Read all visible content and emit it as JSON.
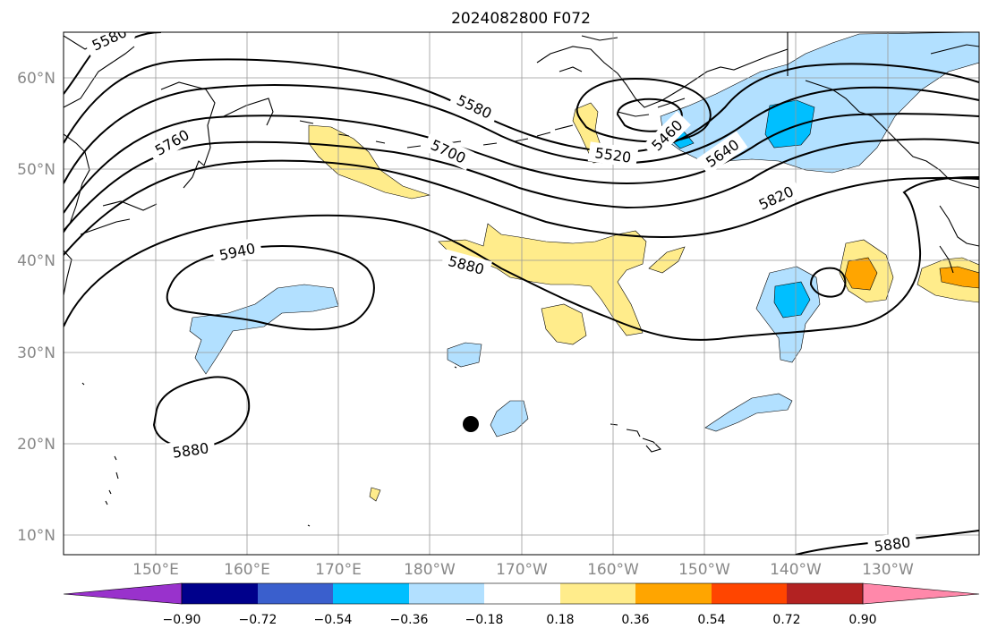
{
  "title": "2024082800 F072",
  "lat_ticks": [
    "60°N",
    "50°N",
    "40°N",
    "30°N",
    "20°N",
    "10°N"
  ],
  "lon_ticks": [
    "150°E",
    "160°E",
    "170°E",
    "180°W",
    "170°W",
    "160°W",
    "150°W",
    "140°W",
    "130°W"
  ],
  "contour_labels": {
    "c5580_nw": "5580",
    "c5760": "5760",
    "c5580": "5580",
    "c5700": "5700",
    "c5520": "5520",
    "c5460": "5460",
    "c5640": "5640",
    "c5820": "5820",
    "c5940": "5940",
    "c5880_mid": "5880",
    "c5880_sw": "5880",
    "c5880_se": "5880"
  },
  "colorbar": {
    "colors": [
      "#9932cc",
      "#00008b",
      "#3a5fcd",
      "#00bfff",
      "#b2e0ff",
      "#ffffff",
      "#ffec8b",
      "#ffa500",
      "#ff4500",
      "#b22222",
      "#ff88aa"
    ],
    "tick_labels": [
      "−0.90",
      "−0.72",
      "−0.54",
      "−0.36",
      "−0.18",
      "0.18",
      "0.36",
      "0.54",
      "0.72",
      "0.90"
    ]
  },
  "colors": {
    "light_blue": "#b2e0ff",
    "blue": "#00bfff",
    "light_yellow": "#ffec8b",
    "orange": "#ffa500"
  }
}
